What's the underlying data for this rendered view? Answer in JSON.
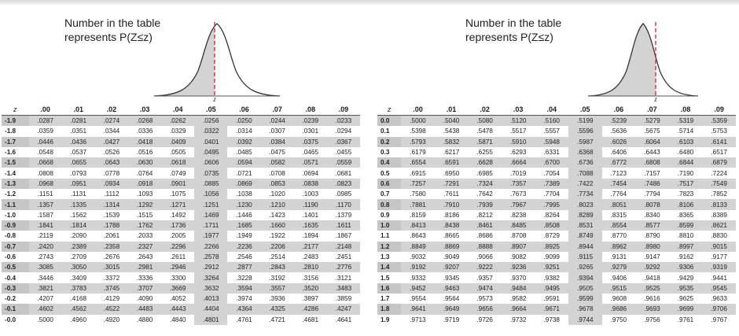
{
  "caption_line1": "Number in the table",
  "caption_line2": "represents P(Z≤z)",
  "curve_label": "z",
  "z_header": "z",
  "columns": [
    ".00",
    ".01",
    ".02",
    ".03",
    ".04",
    ".05",
    ".06",
    ".07",
    ".08",
    ".09"
  ],
  "left_table": [
    {
      "z": "-1.9",
      "v": [
        ".0287",
        ".0281",
        ".0274",
        ".0268",
        ".0262",
        ".0256",
        ".0250",
        ".0244",
        ".0239",
        ".0233"
      ]
    },
    {
      "z": "-1.8",
      "v": [
        ".0359",
        ".0351",
        ".0344",
        ".0336",
        ".0329",
        ".0322",
        ".0314",
        ".0307",
        ".0301",
        ".0294"
      ]
    },
    {
      "z": "-1.7",
      "v": [
        ".0446",
        ".0436",
        ".0427",
        ".0418",
        ".0409",
        ".0401",
        ".0392",
        ".0384",
        ".0375",
        ".0367"
      ]
    },
    {
      "z": "-1.6",
      "v": [
        ".0548",
        ".0537",
        ".0526",
        ".0516",
        ".0505",
        ".0495",
        ".0485",
        ".0475",
        ".0465",
        ".0455"
      ]
    },
    {
      "z": "-1.5",
      "v": [
        ".0668",
        ".0655",
        ".0643",
        ".0630",
        ".0618",
        ".0606",
        ".0594",
        ".0582",
        ".0571",
        ".0559"
      ]
    },
    {
      "z": "-1.4",
      "v": [
        ".0808",
        ".0793",
        ".0778",
        ".0764",
        ".0749",
        ".0735",
        ".0721",
        ".0708",
        ".0694",
        ".0681"
      ]
    },
    {
      "z": "-1.3",
      "v": [
        ".0968",
        ".0951",
        ".0934",
        ".0918",
        ".0901",
        ".0885",
        ".0869",
        ".0853",
        ".0838",
        ".0823"
      ]
    },
    {
      "z": "-1.2",
      "v": [
        ".1151",
        ".1131",
        ".1112",
        ".1093",
        ".1075",
        ".1056",
        ".1038",
        ".1020",
        ".1003",
        ".0985"
      ]
    },
    {
      "z": "-1.1",
      "v": [
        ".1357",
        ".1335",
        ".1314",
        ".1292",
        ".1271",
        ".1251",
        ".1230",
        ".1210",
        ".1190",
        ".1170"
      ]
    },
    {
      "z": "-1.0",
      "v": [
        ".1587",
        ".1562",
        ".1539",
        ".1515",
        ".1492",
        ".1469",
        ".1446",
        ".1423",
        ".1401",
        ".1379"
      ]
    },
    {
      "z": "-0.9",
      "v": [
        ".1841",
        ".1814",
        ".1788",
        ".1762",
        ".1736",
        ".1711",
        ".1685",
        ".1660",
        ".1635",
        ".1611"
      ]
    },
    {
      "z": "-0.8",
      "v": [
        ".2119",
        ".2090",
        ".2061",
        ".2033",
        ".2005",
        ".1977",
        ".1949",
        ".1922",
        ".1894",
        ".1867"
      ]
    },
    {
      "z": "-0.7",
      "v": [
        ".2420",
        ".2389",
        ".2358",
        ".2327",
        ".2296",
        ".2266",
        ".2236",
        ".2206",
        ".2177",
        ".2148"
      ]
    },
    {
      "z": "-0.6",
      "v": [
        ".2743",
        ".2709",
        ".2676",
        ".2643",
        ".2611",
        ".2578",
        ".2546",
        ".2514",
        ".2483",
        ".2451"
      ]
    },
    {
      "z": "-0.5",
      "v": [
        ".3085",
        ".3050",
        ".3015",
        ".2981",
        ".2946",
        ".2912",
        ".2877",
        ".2843",
        ".2810",
        ".2776"
      ]
    },
    {
      "z": "-0.4",
      "v": [
        ".3446",
        ".3409",
        ".3372",
        ".3336",
        ".3300",
        ".3264",
        ".3228",
        ".3192",
        ".3156",
        ".3121"
      ]
    },
    {
      "z": "-0.3",
      "v": [
        ".3821",
        ".3783",
        ".3745",
        ".3707",
        ".3669",
        ".3632",
        ".3594",
        ".3557",
        ".3520",
        ".3483"
      ]
    },
    {
      "z": "-0.2",
      "v": [
        ".4207",
        ".4168",
        ".4129",
        ".4090",
        ".4052",
        ".4013",
        ".3974",
        ".3936",
        ".3897",
        ".3859"
      ]
    },
    {
      "z": "-0.1",
      "v": [
        ".4602",
        ".4562",
        ".4522",
        ".4483",
        ".4443",
        ".4404",
        ".4364",
        ".4325",
        ".4286",
        ".4247"
      ]
    },
    {
      "z": "-0.0",
      "v": [
        ".5000",
        ".4960",
        ".4920",
        ".4880",
        ".4840",
        ".4801",
        ".4761",
        ".4721",
        ".4681",
        ".4641"
      ]
    }
  ],
  "right_table": [
    {
      "z": "0.0",
      "v": [
        ".5000",
        ".5040",
        ".5080",
        ".5120",
        ".5160",
        ".5199",
        ".5239",
        ".5279",
        ".5319",
        ".5359"
      ]
    },
    {
      "z": "0.1",
      "v": [
        ".5398",
        ".5438",
        ".5478",
        ".5517",
        ".5557",
        ".5596",
        ".5636",
        ".5675",
        ".5714",
        ".5753"
      ]
    },
    {
      "z": "0.2",
      "v": [
        ".5793",
        ".5832",
        ".5871",
        ".5910",
        ".5948",
        ".5987",
        ".6026",
        ".6064",
        ".6103",
        ".6141"
      ]
    },
    {
      "z": "0.3",
      "v": [
        ".6179",
        ".6217",
        ".6255",
        ".6293",
        ".6331",
        ".6368",
        ".6406",
        ".6443",
        ".6480",
        ".6517"
      ]
    },
    {
      "z": "0.4",
      "v": [
        ".6554",
        ".6591",
        ".6628",
        ".6664",
        ".6700",
        ".6736",
        ".6772",
        ".6808",
        ".6844",
        ".6879"
      ]
    },
    {
      "z": "0.5",
      "v": [
        ".6915",
        ".6950",
        ".6985",
        ".7019",
        ".7054",
        ".7088",
        ".7123",
        ".7157",
        ".7190",
        ".7224"
      ]
    },
    {
      "z": "0.6",
      "v": [
        ".7257",
        ".7291",
        ".7324",
        ".7357",
        ".7389",
        ".7422",
        ".7454",
        ".7486",
        ".7517",
        ".7549"
      ]
    },
    {
      "z": "0.7",
      "v": [
        ".7580",
        ".7611",
        ".7642",
        ".7673",
        ".7704",
        ".7734",
        ".7764",
        ".7794",
        ".7823",
        ".7852"
      ]
    },
    {
      "z": "0.8",
      "v": [
        ".7881",
        ".7910",
        ".7939",
        ".7967",
        ".7995",
        ".8023",
        ".8051",
        ".8078",
        ".8106",
        ".8133"
      ]
    },
    {
      "z": "0.9",
      "v": [
        ".8159",
        ".8186",
        ".8212",
        ".8238",
        ".8264",
        ".8289",
        ".8315",
        ".8340",
        ".8365",
        ".8389"
      ]
    },
    {
      "z": "1.0",
      "v": [
        ".8413",
        ".8438",
        ".8461",
        ".8485",
        ".8508",
        ".8531",
        ".8554",
        ".8577",
        ".8599",
        ".8621"
      ]
    },
    {
      "z": "1.1",
      "v": [
        ".8643",
        ".8665",
        ".8686",
        ".8708",
        ".8729",
        ".8749",
        ".8770",
        ".8790",
        ".8810",
        ".8830"
      ]
    },
    {
      "z": "1.2",
      "v": [
        ".8849",
        ".8869",
        ".8888",
        ".8907",
        ".8925",
        ".8944",
        ".8962",
        ".8980",
        ".8997",
        ".9015"
      ]
    },
    {
      "z": "1.3",
      "v": [
        ".9032",
        ".9049",
        ".9066",
        ".9082",
        ".9099",
        ".9115",
        ".9131",
        ".9147",
        ".9162",
        ".9177"
      ]
    },
    {
      "z": "1.4",
      "v": [
        ".9192",
        ".9207",
        ".9222",
        ".9236",
        ".9251",
        ".9265",
        ".9279",
        ".9292",
        ".9306",
        ".9319"
      ]
    },
    {
      "z": "1.5",
      "v": [
        ".9332",
        ".9345",
        ".9357",
        ".9370",
        ".9382",
        ".9394",
        ".9406",
        ".9418",
        ".9429",
        ".9441"
      ]
    },
    {
      "z": "1.6",
      "v": [
        ".9452",
        ".9463",
        ".9474",
        ".9484",
        ".9495",
        ".9505",
        ".9515",
        ".9525",
        ".9535",
        ".9545"
      ]
    },
    {
      "z": "1.7",
      "v": [
        ".9554",
        ".9564",
        ".9573",
        ".9582",
        ".9591",
        ".9599",
        ".9608",
        ".9616",
        ".9625",
        ".9633"
      ]
    },
    {
      "z": "1.8",
      "v": [
        ".9641",
        ".9649",
        ".9656",
        ".9664",
        ".9671",
        ".9678",
        ".9686",
        ".9693",
        ".9699",
        ".9706"
      ]
    },
    {
      "z": "1.9",
      "v": [
        ".9713",
        ".9719",
        ".9726",
        ".9732",
        ".9738",
        ".9744",
        ".9750",
        ".9756",
        ".9761",
        ".9767"
      ]
    }
  ],
  "colors": {
    "shade": "#d3d3d3",
    "marker": "#e0182d",
    "curve": "#333333"
  }
}
